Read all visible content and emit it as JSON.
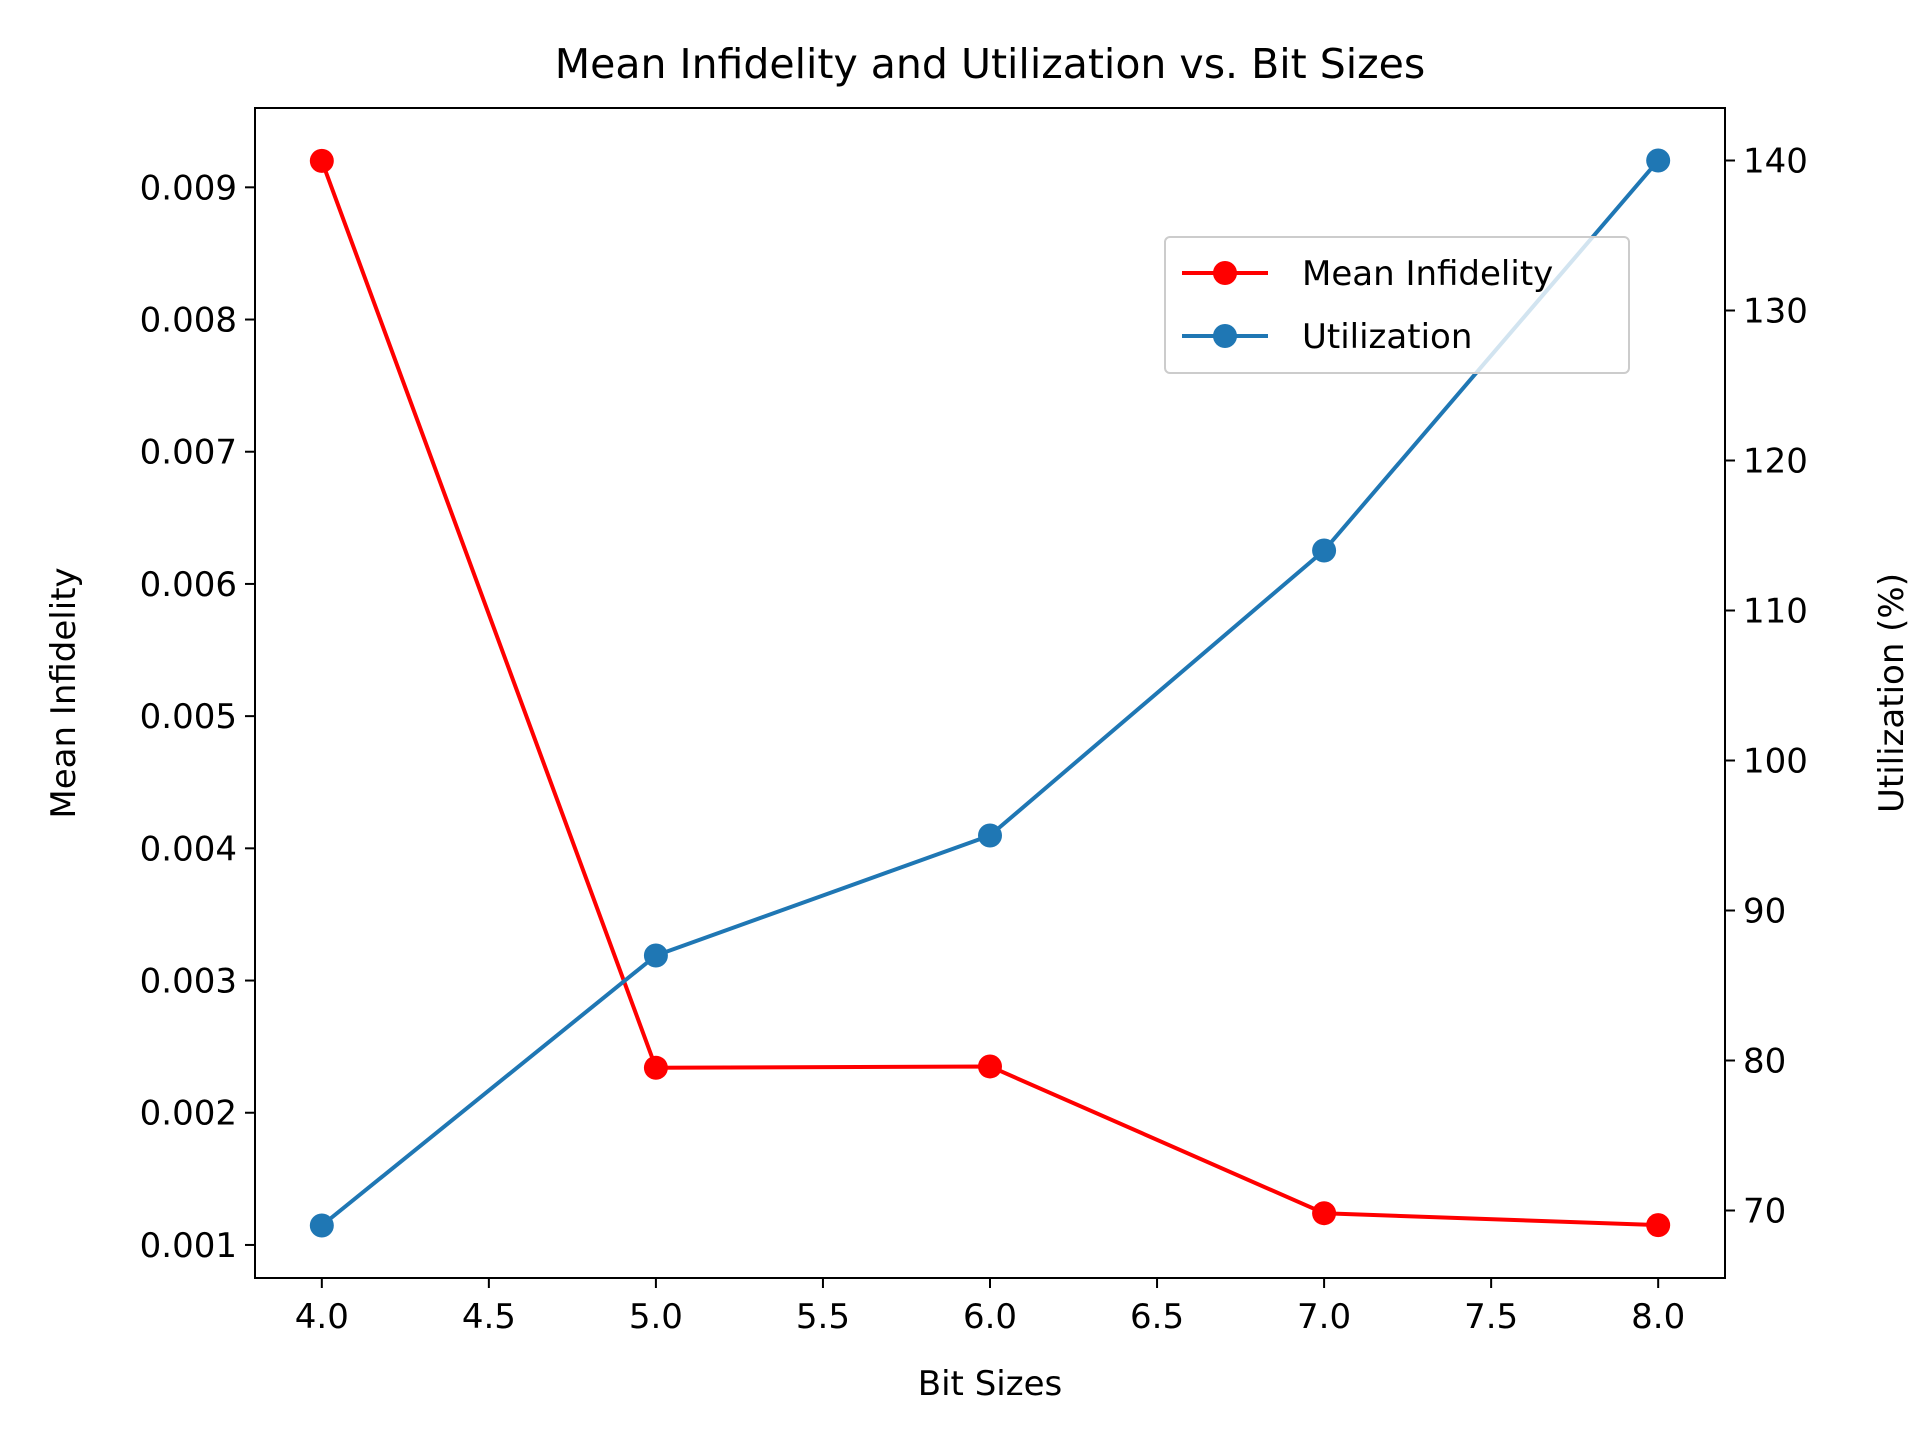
{
  "chart_data": {
    "type": "line",
    "title": "Mean Infidelity and Utilization vs. Bit Sizes",
    "xlabel": "Bit Sizes",
    "ylabel_left": "Mean Infidelity",
    "ylabel_right": "Utilization (%)",
    "x": [
      4.0,
      5.0,
      6.0,
      7.0,
      8.0
    ],
    "xlim": [
      3.8,
      8.2
    ],
    "ylim_left": [
      0.00075,
      0.0096
    ],
    "ylim_right": [
      65.5,
      143.5
    ],
    "x_ticks": [
      {
        "value": 4.0,
        "label": "4.0"
      },
      {
        "value": 4.5,
        "label": "4.5"
      },
      {
        "value": 5.0,
        "label": "5.0"
      },
      {
        "value": 5.5,
        "label": "5.5"
      },
      {
        "value": 6.0,
        "label": "6.0"
      },
      {
        "value": 6.5,
        "label": "6.5"
      },
      {
        "value": 7.0,
        "label": "7.0"
      },
      {
        "value": 7.5,
        "label": "7.5"
      },
      {
        "value": 8.0,
        "label": "8.0"
      }
    ],
    "y_left_ticks": [
      {
        "value": 0.001,
        "label": "0.001"
      },
      {
        "value": 0.002,
        "label": "0.002"
      },
      {
        "value": 0.003,
        "label": "0.003"
      },
      {
        "value": 0.004,
        "label": "0.004"
      },
      {
        "value": 0.005,
        "label": "0.005"
      },
      {
        "value": 0.006,
        "label": "0.006"
      },
      {
        "value": 0.007,
        "label": "0.007"
      },
      {
        "value": 0.008,
        "label": "0.008"
      },
      {
        "value": 0.009,
        "label": "0.009"
      }
    ],
    "y_right_ticks": [
      {
        "value": 70,
        "label": "70"
      },
      {
        "value": 80,
        "label": "80"
      },
      {
        "value": 90,
        "label": "90"
      },
      {
        "value": 100,
        "label": "100"
      },
      {
        "value": 110,
        "label": "110"
      },
      {
        "value": 120,
        "label": "120"
      },
      {
        "value": 130,
        "label": "130"
      },
      {
        "value": 140,
        "label": "140"
      }
    ],
    "series": [
      {
        "name": "Mean Infidelity",
        "axis": "left",
        "color": "#ff0000",
        "values": [
          0.0092,
          0.00234,
          0.00235,
          0.00124,
          0.00115
        ]
      },
      {
        "name": "Utilization",
        "axis": "right",
        "color": "#1f77b4",
        "values": [
          69,
          87,
          95,
          114,
          140
        ]
      }
    ],
    "legend": {
      "position": "upper-right",
      "entries": [
        "Mean Infidelity",
        "Utilization"
      ]
    },
    "grid": false
  }
}
